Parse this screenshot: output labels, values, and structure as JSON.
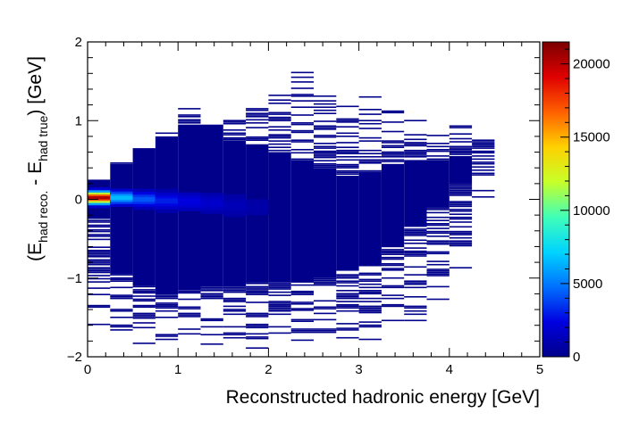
{
  "chart_data": {
    "type": "heatmap",
    "title": "",
    "xlabel": "Reconstructed hadronic energy [GeV]",
    "ylabel": {
      "prefix": "(E",
      "sub1": "had reco.",
      "middle": " - E",
      "sub2": "had true",
      "suffix": ") [GeV]"
    },
    "xlim": [
      0,
      5
    ],
    "ylim": [
      -2,
      2
    ],
    "x_bin_width": 0.25,
    "x_ticks": [
      0,
      1,
      2,
      3,
      4,
      5
    ],
    "x_tick_labels": [
      "0",
      "1",
      "2",
      "3",
      "4",
      "5"
    ],
    "y_ticks": [
      -2,
      -1,
      0,
      1,
      2
    ],
    "y_tick_labels": [
      "−2",
      "−1",
      "0",
      "1",
      "2"
    ],
    "colorbar": {
      "range": [
        0,
        21500
      ],
      "ticks": [
        0,
        5000,
        10000,
        15000,
        20000
      ],
      "tick_labels": [
        "0",
        "5000",
        "10000",
        "15000",
        "20000"
      ],
      "palette": [
        "#00008b",
        "#0000e0",
        "#0070ff",
        "#00d4ff",
        "#40ffb8",
        "#c8ff28",
        "#ffd000",
        "#ff6000",
        "#e00000",
        "#7a0000"
      ]
    },
    "columns": [
      {
        "x": 0.125,
        "dense_y": [
          -0.25,
          0.25
        ],
        "sparse_y": [
          -2.0,
          -0.25,
          0.25,
          0.25
        ],
        "peak_count": 21500,
        "peak_y": 0.02
      },
      {
        "x": 0.375,
        "dense_y": [
          -0.95,
          0.45
        ],
        "sparse_y": [
          -1.95,
          -0.95,
          0.45,
          0.5
        ],
        "peak_count": 7000,
        "peak_y": 0.02
      },
      {
        "x": 0.625,
        "dense_y": [
          -1.1,
          0.65
        ],
        "sparse_y": [
          -1.9,
          -1.1,
          0.65,
          0.7
        ],
        "peak_count": 4500,
        "peak_y": 0.0
      },
      {
        "x": 0.875,
        "dense_y": [
          -1.2,
          0.8
        ],
        "sparse_y": [
          -1.95,
          -1.2,
          0.8,
          0.9
        ],
        "peak_count": 3200,
        "peak_y": -0.02
      },
      {
        "x": 1.125,
        "dense_y": [
          -1.15,
          0.95
        ],
        "sparse_y": [
          -1.9,
          -1.15,
          0.95,
          1.15
        ],
        "peak_count": 2500,
        "peak_y": -0.03
      },
      {
        "x": 1.375,
        "dense_y": [
          -1.1,
          0.95
        ],
        "sparse_y": [
          -1.95,
          -1.1,
          0.95,
          1.1
        ],
        "peak_count": 1900,
        "peak_y": -0.05
      },
      {
        "x": 1.625,
        "dense_y": [
          -1.1,
          0.75
        ],
        "sparse_y": [
          -1.95,
          -1.1,
          0.75,
          1.15
        ],
        "peak_count": 1300,
        "peak_y": -0.08
      },
      {
        "x": 1.875,
        "dense_y": [
          -1.05,
          0.7
        ],
        "sparse_y": [
          -1.9,
          -1.05,
          0.7,
          1.3
        ],
        "peak_count": 900,
        "peak_y": -0.1
      },
      {
        "x": 2.125,
        "dense_y": [
          -1.05,
          0.6
        ],
        "sparse_y": [
          -1.95,
          -1.05,
          0.6,
          1.45
        ],
        "peak_count": 600,
        "peak_y": -0.12
      },
      {
        "x": 2.375,
        "dense_y": [
          -1.05,
          0.5
        ],
        "sparse_y": [
          -1.9,
          -1.05,
          0.5,
          1.85
        ],
        "peak_count": 400,
        "peak_y": -0.15
      },
      {
        "x": 2.625,
        "dense_y": [
          -1.0,
          0.4
        ],
        "sparse_y": [
          -1.9,
          -1.0,
          0.4,
          1.4
        ],
        "peak_count": 250,
        "peak_y": -0.18
      },
      {
        "x": 2.875,
        "dense_y": [
          -0.9,
          0.3
        ],
        "sparse_y": [
          -1.85,
          -0.9,
          0.3,
          1.3
        ],
        "peak_count": 150,
        "peak_y": -0.2
      },
      {
        "x": 3.125,
        "dense_y": [
          -0.85,
          0.35
        ],
        "sparse_y": [
          -1.85,
          -0.85,
          0.35,
          1.3
        ],
        "peak_count": 100,
        "peak_y": -0.22
      },
      {
        "x": 3.375,
        "dense_y": [
          -0.6,
          0.45
        ],
        "sparse_y": [
          -1.75,
          -0.6,
          0.45,
          1.2
        ],
        "peak_count": 60,
        "peak_y": -0.22
      },
      {
        "x": 3.625,
        "dense_y": [
          -0.35,
          0.5
        ],
        "sparse_y": [
          -1.55,
          -0.35,
          0.5,
          1.05
        ],
        "peak_count": 30,
        "peak_y": -0.2
      },
      {
        "x": 3.875,
        "dense_y": [
          -0.1,
          0.5
        ],
        "sparse_y": [
          -1.3,
          -0.1,
          0.5,
          1.0
        ],
        "peak_count": 15,
        "peak_y": -0.15
      },
      {
        "x": 4.125,
        "dense_y": [
          0.2,
          0.55
        ],
        "sparse_y": [
          -0.9,
          0.2,
          0.55,
          0.95
        ],
        "peak_count": 5,
        "peak_y": -0.1
      },
      {
        "x": 4.375,
        "dense_y": [
          0.7,
          0.7
        ],
        "sparse_y": [
          -0.1,
          0.7,
          0.7,
          0.8
        ],
        "peak_count": 1,
        "peak_y": 0.5
      }
    ]
  }
}
